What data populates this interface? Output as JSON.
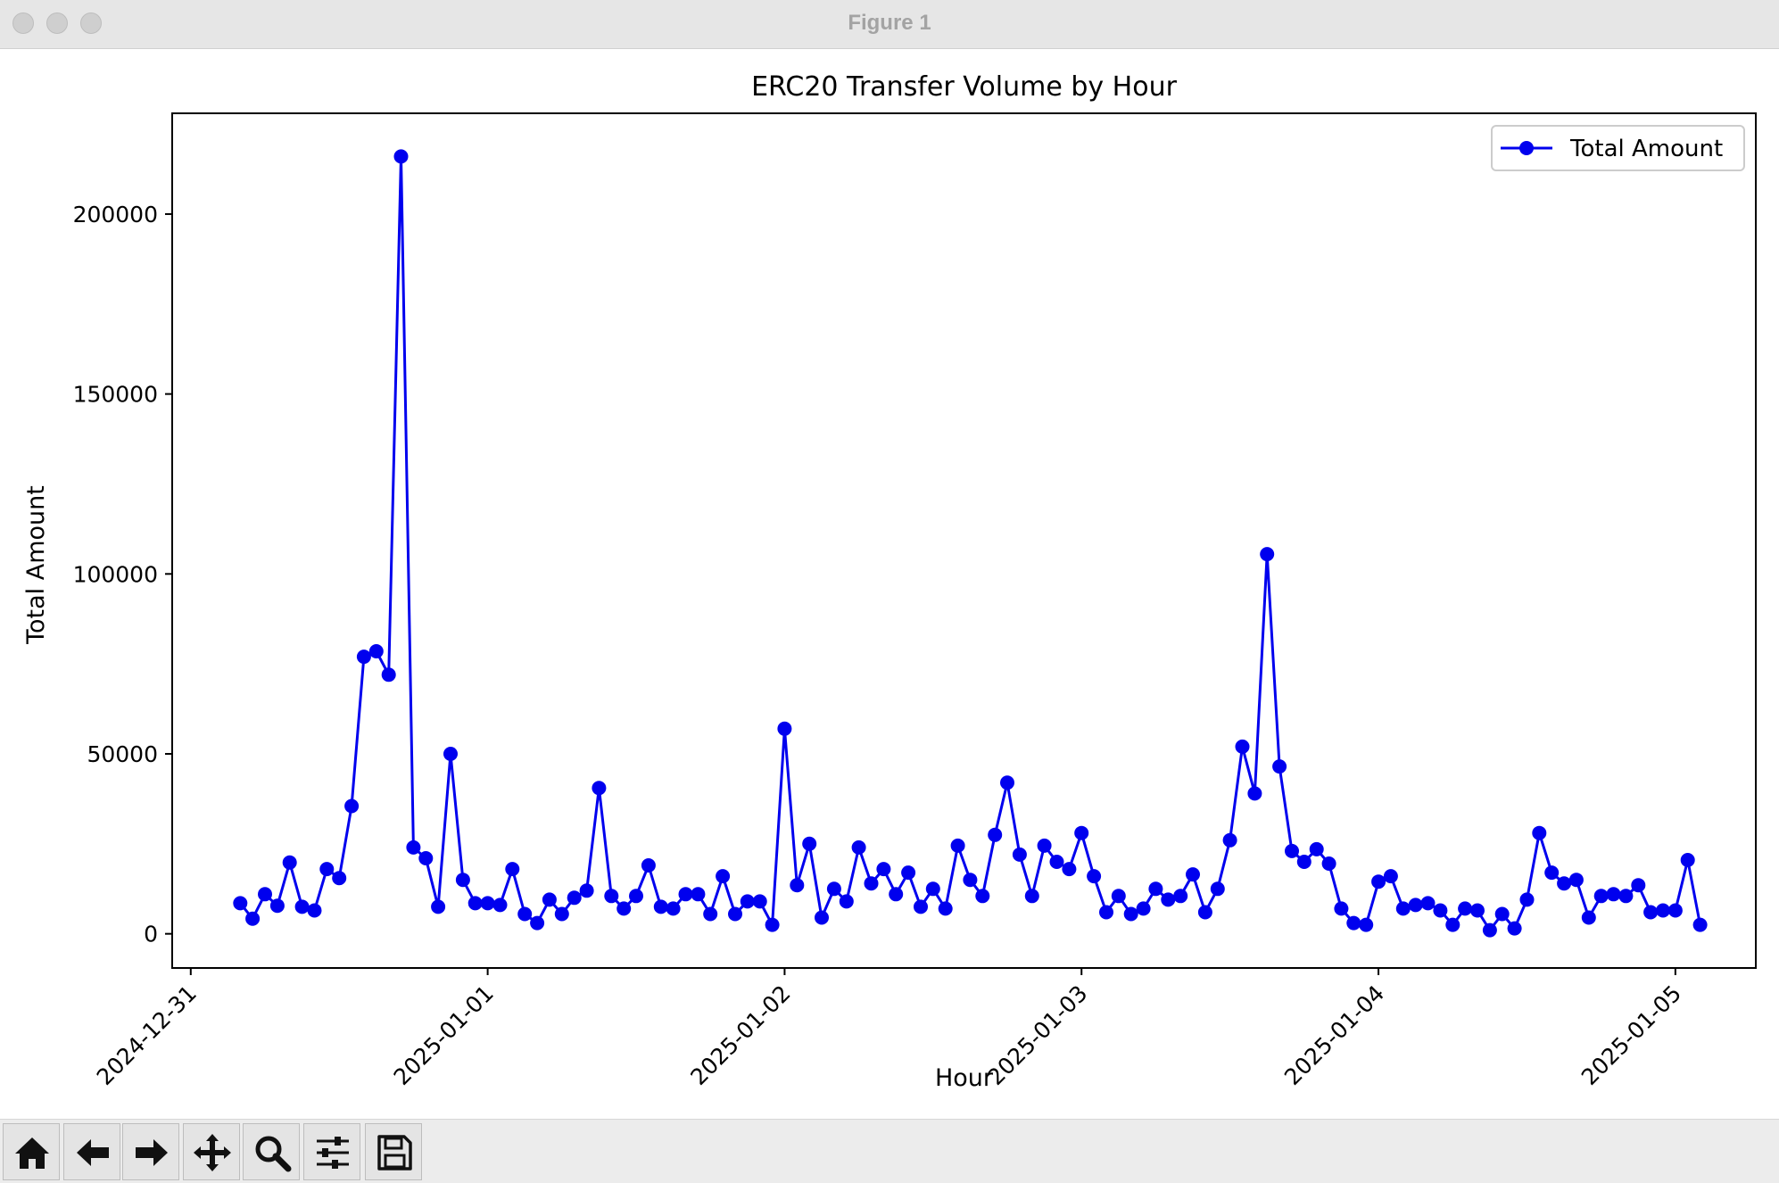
{
  "window": {
    "title": "Figure 1"
  },
  "toolbar": {
    "icons": [
      "home-icon",
      "back-arrow-icon",
      "forward-arrow-icon",
      "pan-icon",
      "zoom-icon",
      "configure-subplots-icon",
      "save-icon"
    ]
  },
  "colors": {
    "series": "#0000ee",
    "text": "#000000",
    "axes": "#000000"
  },
  "chart_data": {
    "type": "line",
    "title": "ERC20 Transfer Volume by Hour",
    "xlabel": "Hour",
    "ylabel": "Total Amount",
    "xticks": [
      "2024-12-31",
      "2025-01-01",
      "2025-01-02",
      "2025-01-03",
      "2025-01-04",
      "2025-01-05"
    ],
    "yticks": [
      0,
      50000,
      100000,
      150000,
      200000
    ],
    "xlim": [
      "2024-12-30 22:30",
      "2025-01-05 06:30"
    ],
    "ylim": [
      -9500,
      228000
    ],
    "grid": false,
    "legend_position": "top-right",
    "series": [
      {
        "name": "Total Amount",
        "color": "#0000ee",
        "marker": "circle",
        "x": [
          "2024-12-31 04:00",
          "2024-12-31 05:00",
          "2024-12-31 06:00",
          "2024-12-31 07:00",
          "2024-12-31 08:00",
          "2024-12-31 09:00",
          "2024-12-31 10:00",
          "2024-12-31 11:00",
          "2024-12-31 12:00",
          "2024-12-31 13:00",
          "2024-12-31 14:00",
          "2024-12-31 15:00",
          "2024-12-31 16:00",
          "2024-12-31 17:00",
          "2024-12-31 18:00",
          "2024-12-31 19:00",
          "2024-12-31 20:00",
          "2024-12-31 21:00",
          "2024-12-31 22:00",
          "2024-12-31 23:00",
          "2025-01-01 00:00",
          "2025-01-01 01:00",
          "2025-01-01 02:00",
          "2025-01-01 03:00",
          "2025-01-01 04:00",
          "2025-01-01 05:00",
          "2025-01-01 06:00",
          "2025-01-01 07:00",
          "2025-01-01 08:00",
          "2025-01-01 09:00",
          "2025-01-01 10:00",
          "2025-01-01 11:00",
          "2025-01-01 12:00",
          "2025-01-01 13:00",
          "2025-01-01 14:00",
          "2025-01-01 15:00",
          "2025-01-01 16:00",
          "2025-01-01 17:00",
          "2025-01-01 18:00",
          "2025-01-01 19:00",
          "2025-01-01 20:00",
          "2025-01-01 21:00",
          "2025-01-01 22:00",
          "2025-01-01 23:00",
          "2025-01-02 00:00",
          "2025-01-02 01:00",
          "2025-01-02 02:00",
          "2025-01-02 03:00",
          "2025-01-02 04:00",
          "2025-01-02 05:00",
          "2025-01-02 06:00",
          "2025-01-02 07:00",
          "2025-01-02 08:00",
          "2025-01-02 09:00",
          "2025-01-02 10:00",
          "2025-01-02 11:00",
          "2025-01-02 12:00",
          "2025-01-02 13:00",
          "2025-01-02 14:00",
          "2025-01-02 15:00",
          "2025-01-02 16:00",
          "2025-01-02 17:00",
          "2025-01-02 18:00",
          "2025-01-02 19:00",
          "2025-01-02 20:00",
          "2025-01-02 21:00",
          "2025-01-02 22:00",
          "2025-01-02 23:00",
          "2025-01-03 00:00",
          "2025-01-03 01:00",
          "2025-01-03 02:00",
          "2025-01-03 03:00",
          "2025-01-03 04:00",
          "2025-01-03 05:00",
          "2025-01-03 06:00",
          "2025-01-03 07:00",
          "2025-01-03 08:00",
          "2025-01-03 09:00",
          "2025-01-03 10:00",
          "2025-01-03 11:00",
          "2025-01-03 12:00",
          "2025-01-03 13:00",
          "2025-01-03 14:00",
          "2025-01-03 15:00",
          "2025-01-03 16:00",
          "2025-01-03 17:00",
          "2025-01-03 18:00",
          "2025-01-03 19:00",
          "2025-01-03 20:00",
          "2025-01-03 21:00",
          "2025-01-03 22:00",
          "2025-01-03 23:00",
          "2025-01-04 00:00",
          "2025-01-04 01:00",
          "2025-01-04 02:00",
          "2025-01-04 03:00",
          "2025-01-04 04:00",
          "2025-01-04 05:00",
          "2025-01-04 06:00",
          "2025-01-04 07:00",
          "2025-01-04 08:00",
          "2025-01-04 09:00",
          "2025-01-04 10:00",
          "2025-01-04 11:00",
          "2025-01-04 12:00",
          "2025-01-04 13:00",
          "2025-01-04 14:00",
          "2025-01-04 15:00",
          "2025-01-04 16:00",
          "2025-01-04 17:00",
          "2025-01-04 18:00",
          "2025-01-04 19:00",
          "2025-01-04 20:00",
          "2025-01-04 21:00",
          "2025-01-04 22:00",
          "2025-01-04 23:00",
          "2025-01-05 00:00",
          "2025-01-05 01:00",
          "2025-01-05 02:00"
        ],
        "values": [
          8500,
          4200,
          11000,
          7800,
          19800,
          7500,
          6500,
          18000,
          15500,
          35500,
          77000,
          78500,
          72000,
          216000,
          24000,
          21000,
          7500,
          50000,
          15000,
          8500,
          8500,
          8000,
          18000,
          5500,
          3000,
          9500,
          5500,
          10000,
          12000,
          40500,
          10500,
          7000,
          10500,
          19000,
          7500,
          7000,
          11000,
          11000,
          5500,
          16000,
          5500,
          9000,
          9000,
          2500,
          57000,
          13500,
          25000,
          4500,
          12500,
          9000,
          24000,
          14000,
          18000,
          11000,
          17000,
          7500,
          12500,
          7000,
          24500,
          15000,
          10500,
          27500,
          42000,
          22000,
          10500,
          24500,
          20000,
          18000,
          28000,
          16000,
          6000,
          10500,
          5500,
          7000,
          12500,
          9500,
          10500,
          16500,
          6000,
          12500,
          26000,
          52000,
          39000,
          105500,
          46500,
          23000,
          20000,
          23500,
          19500,
          7000,
          3000,
          2500,
          14500,
          16000,
          7000,
          8000,
          8500,
          6500,
          2500,
          7000,
          6500,
          1000,
          5500,
          1500,
          9500,
          28000,
          17000,
          14000,
          15000,
          4500,
          10500,
          11000,
          10500,
          13500,
          6000,
          6500,
          6500,
          20500,
          2500
        ]
      }
    ]
  }
}
